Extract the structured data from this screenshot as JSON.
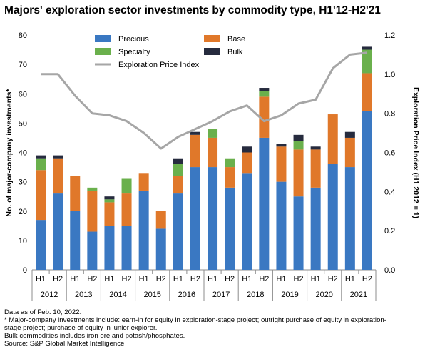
{
  "chart_data": {
    "type": "bar",
    "title": "Majors' exploration sector investments by commodity type, H1'12-H2'21",
    "ylabel": "No. of major-company investments*",
    "y2label": "Exploration Price Index (H1 2012 = 1)",
    "ylim": [
      0,
      80
    ],
    "yticks": [
      0,
      10,
      20,
      30,
      40,
      50,
      60,
      70,
      80
    ],
    "y2lim": [
      0.0,
      1.2
    ],
    "y2ticks": [
      "0.0",
      "0.2",
      "0.4",
      "0.6",
      "0.8",
      "1.0",
      "1.2"
    ],
    "categories": [
      "H1",
      "H2",
      "H1",
      "H2",
      "H1",
      "H2",
      "H1",
      "H2",
      "H1",
      "H2",
      "H1",
      "H2",
      "H1",
      "H2",
      "H1",
      "H2",
      "H1",
      "H2",
      "H1",
      "H2"
    ],
    "years": [
      "2012",
      "2013",
      "2014",
      "2015",
      "2016",
      "2017",
      "2018",
      "2019",
      "2020",
      "2021"
    ],
    "stacked": true,
    "grid": false,
    "legend_position": "top",
    "series": [
      {
        "name": "Precious",
        "color": "#3a78c2",
        "values": [
          17,
          26,
          20,
          13,
          15,
          15,
          27,
          14,
          26,
          35,
          35,
          28,
          33,
          45,
          30,
          25,
          28,
          36,
          35,
          54
        ]
      },
      {
        "name": "Base",
        "color": "#e0782a",
        "values": [
          17,
          12,
          12,
          14,
          8,
          11,
          6,
          6,
          6,
          11,
          10,
          7,
          7,
          14,
          12,
          16,
          13,
          17,
          10,
          13
        ]
      },
      {
        "name": "Specialty",
        "color": "#6ab04c",
        "values": [
          4,
          0,
          0,
          1,
          1,
          5,
          0,
          0,
          4,
          0,
          3,
          3,
          0,
          2,
          0,
          3,
          0,
          0,
          0,
          8
        ]
      },
      {
        "name": "Bulk",
        "color": "#262b3e",
        "values": [
          1,
          1,
          0,
          0,
          1,
          0,
          0,
          0,
          2,
          1,
          0,
          0,
          2,
          1,
          1,
          2,
          1,
          0,
          2,
          1
        ]
      }
    ],
    "line": {
      "name": "Exploration Price Index",
      "color": "#a6a6a6",
      "axis": "right",
      "values": [
        1.0,
        1.0,
        0.89,
        0.8,
        0.79,
        0.76,
        0.7,
        0.62,
        0.68,
        0.72,
        0.76,
        0.81,
        0.84,
        0.76,
        0.79,
        0.85,
        0.87,
        1.03,
        1.1,
        1.11
      ]
    }
  },
  "notes": [
    "Data as of Feb. 10, 2022.",
    "* Major-company investments include: earn-in for equity in exploration-stage project; outright purchase of equity in exploration-",
    "stage project; purchase of equity in junior explorer.",
    "Bulk commodities includes iron ore and potash/phosphates.",
    "Source: S&P Global Market Intelligence"
  ]
}
